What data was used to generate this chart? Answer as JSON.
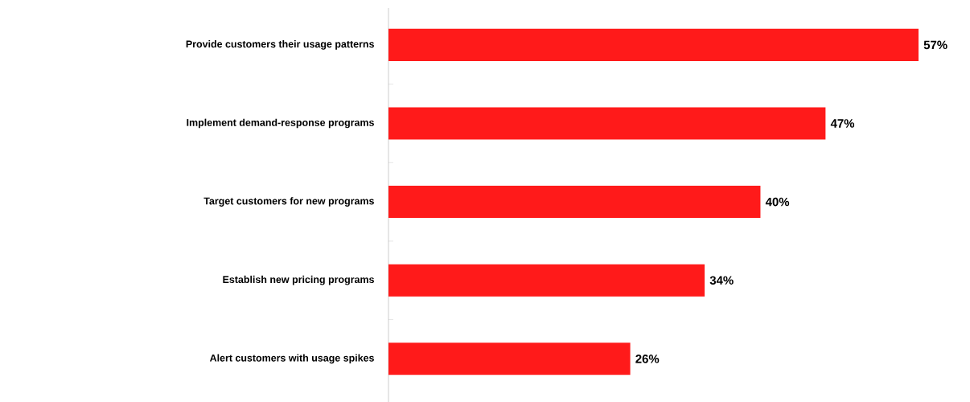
{
  "chart_data": {
    "type": "bar",
    "orientation": "horizontal",
    "color": "#ff1a1a",
    "categories": [
      "Provide customers their usage patterns",
      "Implement demand-response programs",
      "Target customers for new programs",
      "Establish new pricing programs",
      "Alert customers with usage spikes"
    ],
    "values": [
      57,
      47,
      40,
      34,
      26
    ],
    "value_labels": [
      "57%",
      "47%",
      "40%",
      "34%",
      "26%"
    ]
  }
}
